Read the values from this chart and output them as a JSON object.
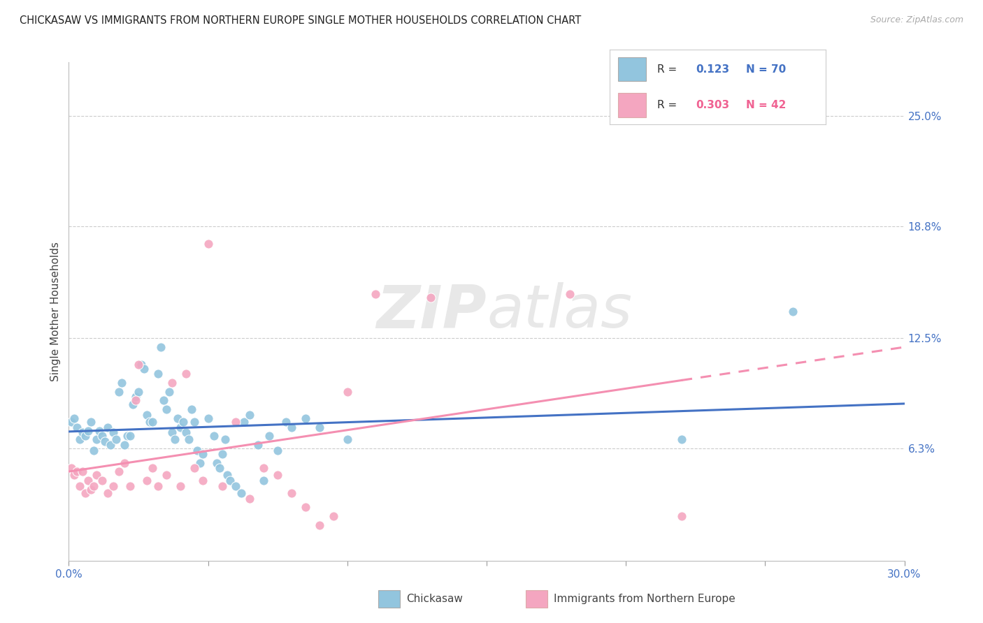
{
  "title": "CHICKASAW VS IMMIGRANTS FROM NORTHERN EUROPE SINGLE MOTHER HOUSEHOLDS CORRELATION CHART",
  "source": "Source: ZipAtlas.com",
  "ylabel": "Single Mother Households",
  "y_ticks": [
    "6.3%",
    "12.5%",
    "18.8%",
    "25.0%"
  ],
  "y_tick_vals": [
    0.063,
    0.125,
    0.188,
    0.25
  ],
  "x_range": [
    0.0,
    0.3
  ],
  "y_range": [
    0.0,
    0.28
  ],
  "legend_label1": "Chickasaw",
  "legend_label2": "Immigrants from Northern Europe",
  "R1": "0.123",
  "N1": "70",
  "R2": "0.303",
  "N2": "42",
  "color_blue": "#92c5de",
  "color_pink": "#f4a6c0",
  "color_blue_line": "#4472c4",
  "color_pink_line": "#f48fb1",
  "color_blue_text": "#4472c4",
  "color_pink_text": "#f06292",
  "watermark": "ZIPatlas",
  "chickasaw_x": [
    0.001,
    0.002,
    0.003,
    0.004,
    0.005,
    0.006,
    0.007,
    0.008,
    0.009,
    0.01,
    0.011,
    0.012,
    0.013,
    0.014,
    0.015,
    0.016,
    0.017,
    0.018,
    0.019,
    0.02,
    0.021,
    0.022,
    0.023,
    0.024,
    0.025,
    0.026,
    0.027,
    0.028,
    0.029,
    0.03,
    0.032,
    0.033,
    0.034,
    0.035,
    0.036,
    0.037,
    0.038,
    0.039,
    0.04,
    0.041,
    0.042,
    0.043,
    0.044,
    0.045,
    0.046,
    0.047,
    0.048,
    0.05,
    0.052,
    0.053,
    0.054,
    0.055,
    0.056,
    0.057,
    0.058,
    0.06,
    0.062,
    0.063,
    0.065,
    0.068,
    0.07,
    0.072,
    0.075,
    0.078,
    0.08,
    0.085,
    0.09,
    0.1,
    0.22,
    0.26
  ],
  "chickasaw_y": [
    0.078,
    0.08,
    0.075,
    0.068,
    0.072,
    0.07,
    0.073,
    0.078,
    0.062,
    0.068,
    0.073,
    0.07,
    0.067,
    0.075,
    0.065,
    0.072,
    0.068,
    0.095,
    0.1,
    0.065,
    0.07,
    0.07,
    0.088,
    0.092,
    0.095,
    0.11,
    0.108,
    0.082,
    0.078,
    0.078,
    0.105,
    0.12,
    0.09,
    0.085,
    0.095,
    0.072,
    0.068,
    0.08,
    0.075,
    0.078,
    0.072,
    0.068,
    0.085,
    0.078,
    0.062,
    0.055,
    0.06,
    0.08,
    0.07,
    0.055,
    0.052,
    0.06,
    0.068,
    0.048,
    0.045,
    0.042,
    0.038,
    0.078,
    0.082,
    0.065,
    0.045,
    0.07,
    0.062,
    0.078,
    0.075,
    0.08,
    0.075,
    0.068,
    0.068,
    0.14
  ],
  "immigrants_x": [
    0.001,
    0.002,
    0.003,
    0.004,
    0.005,
    0.006,
    0.007,
    0.008,
    0.009,
    0.01,
    0.012,
    0.014,
    0.016,
    0.018,
    0.02,
    0.022,
    0.024,
    0.025,
    0.028,
    0.03,
    0.032,
    0.035,
    0.037,
    0.04,
    0.042,
    0.045,
    0.048,
    0.05,
    0.055,
    0.06,
    0.065,
    0.07,
    0.075,
    0.08,
    0.085,
    0.09,
    0.095,
    0.1,
    0.11,
    0.13,
    0.18,
    0.22
  ],
  "immigrants_y": [
    0.052,
    0.048,
    0.05,
    0.042,
    0.05,
    0.038,
    0.045,
    0.04,
    0.042,
    0.048,
    0.045,
    0.038,
    0.042,
    0.05,
    0.055,
    0.042,
    0.09,
    0.11,
    0.045,
    0.052,
    0.042,
    0.048,
    0.1,
    0.042,
    0.105,
    0.052,
    0.045,
    0.178,
    0.042,
    0.078,
    0.035,
    0.052,
    0.048,
    0.038,
    0.03,
    0.02,
    0.025,
    0.095,
    0.15,
    0.148,
    0.15,
    0.025
  ]
}
